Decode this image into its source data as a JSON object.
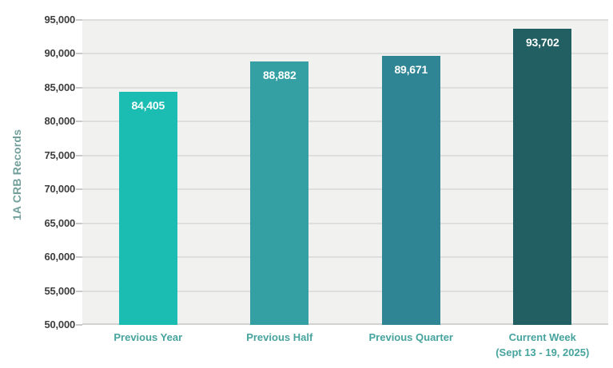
{
  "chart_data": {
    "type": "bar",
    "title": "",
    "xlabel": "",
    "ylabel": "1A CRB Records",
    "categories": [
      "Previous Year",
      "Previous Half",
      "Previous Quarter",
      "Current Week (Sept 13 - 19, 2025)"
    ],
    "category_lines": [
      [
        "Previous Year"
      ],
      [
        "Previous Half"
      ],
      [
        "Previous Quarter"
      ],
      [
        "Current Week",
        "(Sept 13 - 19, 2025)"
      ]
    ],
    "values": [
      84405,
      88882,
      89671,
      93702
    ],
    "value_labels": [
      "84,405",
      "88,882",
      "89,671",
      "93,702"
    ],
    "bar_colors": [
      "#1bbcb2",
      "#35a0a3",
      "#2f8594",
      "#215f62"
    ],
    "ylim": [
      50000,
      95000
    ],
    "ytick_step": 5000,
    "ytick_labels": [
      "50,000",
      "55,000",
      "60,000",
      "65,000",
      "70,000",
      "75,000",
      "80,000",
      "85,000",
      "90,000",
      "95,000"
    ],
    "grid": true,
    "legend": false
  },
  "colors": {
    "background": "#ffffff",
    "plot_background": "#f1f1f0",
    "gridline": "#dedede",
    "y_tick_label": "#3d3d3d",
    "category_label": "#46a39d",
    "axis_title": "#73a09c",
    "value_label": "#ffffff"
  }
}
